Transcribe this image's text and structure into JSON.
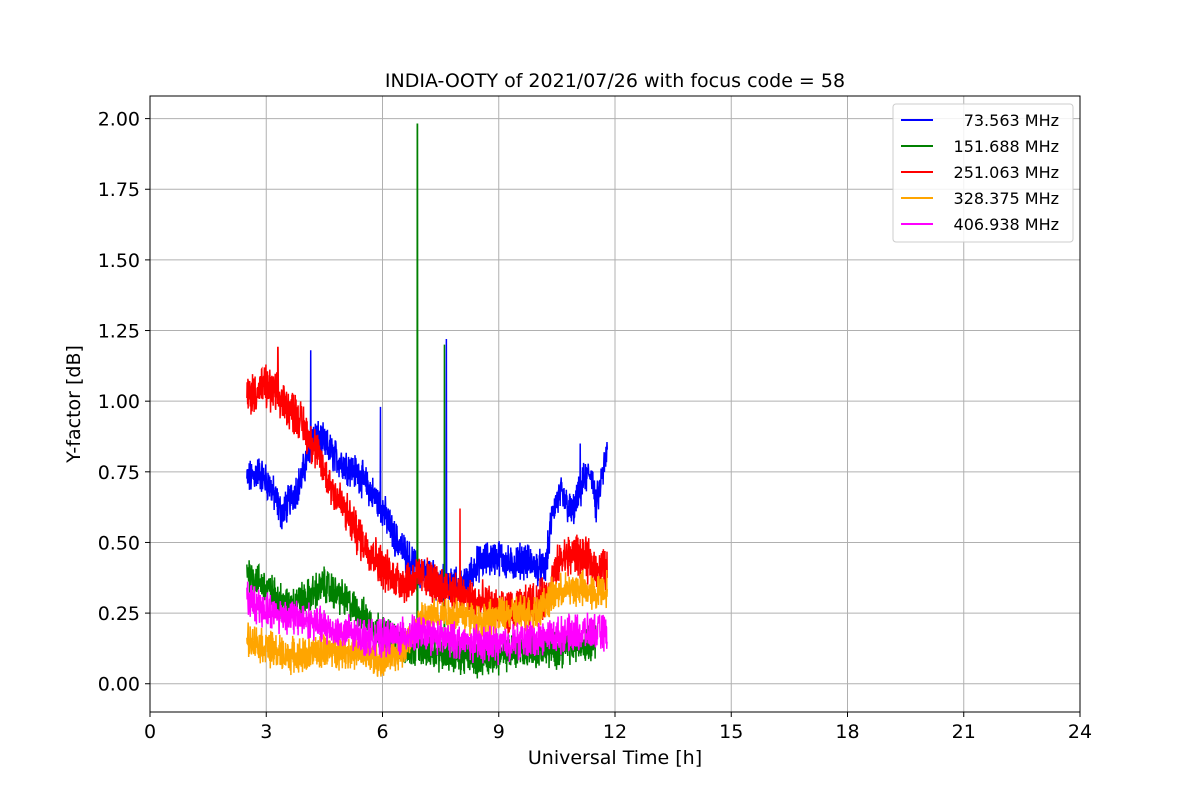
{
  "chart_data": {
    "type": "line",
    "title": "INDIA-OOTY of 2021/07/26 with focus code = 58",
    "xlabel": "Universal Time [h]",
    "ylabel": "Y-factor [dB]",
    "xlim": [
      0,
      24
    ],
    "ylim": [
      -0.1,
      2.08
    ],
    "xticks": [
      0,
      3,
      6,
      9,
      12,
      15,
      18,
      21,
      24
    ],
    "xtick_labels": [
      "0",
      "3",
      "6",
      "9",
      "12",
      "15",
      "18",
      "21",
      "24"
    ],
    "yticks": [
      0.0,
      0.25,
      0.5,
      0.75,
      1.0,
      1.25,
      1.5,
      1.75,
      2.0
    ],
    "ytick_labels": [
      "0.00",
      "0.25",
      "0.50",
      "0.75",
      "1.00",
      "1.25",
      "1.50",
      "1.75",
      "2.00"
    ],
    "grid": true,
    "legend_position": "top-right",
    "series": [
      {
        "name": "73.563 MHz",
        "color": "#0000ff",
        "noise": 0.05,
        "x": [
          2.5,
          2.8,
          3.1,
          3.4,
          3.6,
          3.9,
          4.2,
          4.5,
          4.8,
          5.1,
          5.4,
          5.7,
          6.0,
          6.3,
          6.6,
          6.9,
          7.2,
          7.5,
          7.8,
          8.1,
          8.4,
          8.7,
          9.0,
          9.3,
          9.6,
          9.9,
          10.2,
          10.4,
          10.6,
          10.9,
          11.2,
          11.4,
          11.5,
          11.8
        ],
        "y": [
          0.72,
          0.75,
          0.7,
          0.6,
          0.65,
          0.72,
          0.88,
          0.85,
          0.8,
          0.77,
          0.74,
          0.68,
          0.62,
          0.52,
          0.46,
          0.4,
          0.38,
          0.36,
          0.35,
          0.34,
          0.42,
          0.44,
          0.45,
          0.42,
          0.44,
          0.42,
          0.4,
          0.62,
          0.67,
          0.6,
          0.72,
          0.75,
          0.62,
          0.82
        ],
        "spikes": [
          [
            4.15,
            1.18
          ],
          [
            5.95,
            0.98
          ],
          [
            7.65,
            1.22
          ],
          [
            11.1,
            0.85
          ]
        ]
      },
      {
        "name": "151.688 MHz",
        "color": "#008000",
        "noise": 0.05,
        "x": [
          2.5,
          3.0,
          3.5,
          4.0,
          4.5,
          5.0,
          5.5,
          6.0,
          6.5,
          7.0,
          7.5,
          8.0,
          8.5,
          9.0,
          9.5,
          10.0,
          10.5,
          11.0,
          11.5
        ],
        "y": [
          0.4,
          0.34,
          0.28,
          0.3,
          0.35,
          0.3,
          0.24,
          0.18,
          0.14,
          0.12,
          0.11,
          0.1,
          0.09,
          0.1,
          0.12,
          0.12,
          0.12,
          0.14,
          0.15
        ],
        "spikes": [
          [
            6.9,
            1.98
          ],
          [
            7.6,
            1.2
          ]
        ]
      },
      {
        "name": "251.063 MHz",
        "color": "#ff0000",
        "noise": 0.06,
        "x": [
          2.5,
          3.0,
          3.4,
          3.8,
          4.2,
          4.6,
          5.0,
          5.4,
          5.8,
          6.2,
          6.6,
          7.0,
          7.4,
          7.8,
          8.2,
          8.6,
          9.0,
          9.4,
          9.8,
          10.2,
          10.6,
          11.0,
          11.4,
          11.8
        ],
        "y": [
          1.02,
          1.05,
          1.0,
          0.95,
          0.85,
          0.72,
          0.62,
          0.52,
          0.45,
          0.38,
          0.36,
          0.38,
          0.35,
          0.33,
          0.3,
          0.28,
          0.26,
          0.25,
          0.28,
          0.3,
          0.44,
          0.46,
          0.42,
          0.4
        ],
        "spikes": [
          [
            3.3,
            1.19
          ],
          [
            8.0,
            0.62
          ]
        ]
      },
      {
        "name": "328.375 MHz",
        "color": "#ffa500",
        "noise": 0.05,
        "x": [
          2.5,
          3.0,
          3.5,
          4.0,
          4.5,
          5.0,
          5.5,
          6.0,
          6.5,
          7.0,
          7.5,
          8.0,
          8.5,
          9.0,
          9.5,
          10.0,
          10.5,
          11.0,
          11.5,
          11.8
        ],
        "y": [
          0.16,
          0.13,
          0.1,
          0.1,
          0.12,
          0.12,
          0.1,
          0.08,
          0.12,
          0.22,
          0.25,
          0.25,
          0.22,
          0.24,
          0.25,
          0.26,
          0.32,
          0.34,
          0.32,
          0.34
        ],
        "spikes": []
      },
      {
        "name": "406.938 MHz",
        "color": "#ff00ff",
        "noise": 0.05,
        "x": [
          2.5,
          3.0,
          3.5,
          4.0,
          4.5,
          5.0,
          5.5,
          6.0,
          6.5,
          7.0,
          7.5,
          8.0,
          8.5,
          9.0,
          9.5,
          10.0,
          10.5,
          11.0,
          11.5,
          11.8
        ],
        "y": [
          0.3,
          0.26,
          0.24,
          0.23,
          0.2,
          0.18,
          0.17,
          0.16,
          0.17,
          0.18,
          0.16,
          0.15,
          0.14,
          0.14,
          0.15,
          0.16,
          0.17,
          0.18,
          0.18,
          0.18
        ],
        "spikes": []
      }
    ]
  }
}
